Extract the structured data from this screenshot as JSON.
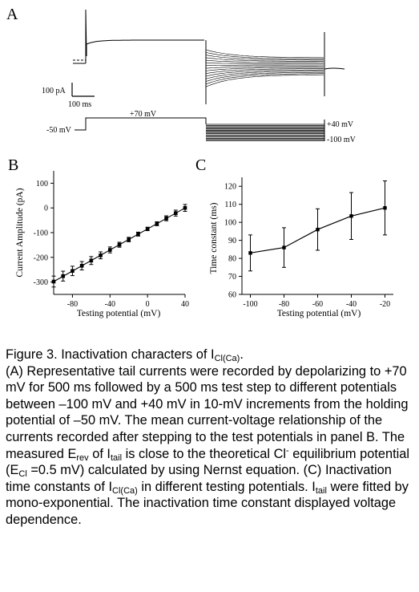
{
  "panel_a": {
    "label": "A",
    "scale_current": "100 pA",
    "scale_time": "100 ms",
    "protocol_step": "+70 mV",
    "protocol_hold": "-50 mV",
    "protocol_top": "+40 mV",
    "protocol_bottom": "-100 mV"
  },
  "chart_data": [
    {
      "panel": "B",
      "type": "scatter",
      "xlabel": "Testing potential (mV)",
      "ylabel": "Current Amplitude (pA)",
      "xlim": [
        -100,
        40
      ],
      "ylim": [
        -350,
        150
      ],
      "xticks": [
        -80,
        -40,
        0,
        40
      ],
      "yticks": [
        100,
        0,
        -100,
        -200,
        -300
      ],
      "series": [
        {
          "x": [
            -100,
            -90,
            -80,
            -70,
            -60,
            -50,
            -40,
            -30,
            -20,
            -10,
            0,
            10,
            20,
            30,
            40
          ],
          "y": [
            -298,
            -276,
            -255,
            -234,
            -213,
            -192,
            -170,
            -149,
            -128,
            -106,
            -85,
            -64,
            -42,
            -21,
            0
          ],
          "err": [
            22,
            20,
            19,
            17,
            16,
            14,
            12,
            10,
            9,
            8,
            7,
            8,
            10,
            12,
            14
          ]
        }
      ]
    },
    {
      "panel": "C",
      "type": "line",
      "xlabel": "Testing potential (mV)",
      "ylabel": "Time constant (ms)",
      "xlim": [
        -105,
        -15
      ],
      "ylim": [
        60,
        125
      ],
      "xticks": [
        -100,
        -80,
        -60,
        -40,
        -20
      ],
      "yticks": [
        60,
        70,
        80,
        90,
        100,
        110,
        120
      ],
      "series": [
        {
          "x": [
            -100,
            -80,
            -60,
            -40,
            -20
          ],
          "y": [
            83,
            86,
            96,
            103.5,
            108
          ],
          "err": [
            10,
            11,
            11.5,
            13,
            15
          ]
        }
      ]
    }
  ],
  "caption": {
    "title_pre": "Figure 3. Inactivation characters of I",
    "title_sub": "Cl(Ca)",
    "title_post": ".",
    "p1": "(A) Representative tail currents were recorded by depolarizing to +70 mV for 500 ms followed by a 500 ms test step to different potentials between –100 mV and +40 mV in 10-mV increments from the holding potential of –50 mV. The mean current-voltage relationship of the currents recorded after stepping to the test potentials in panel B. The measured E",
    "rev_sub": "rev",
    "of_text": " of I",
    "tail_sub": "tail",
    "p2": " is close to the theoretical Cl",
    "cl_sup": "-",
    "p3": " equilibrium potential (E",
    "cl_sub": "Cl",
    "p4": " =0.5 mV) calculated by using Nernst equation. (C) Inactivation time constants of I",
    "clca_sub": "Cl(Ca)",
    "p5": " in different testing potentials. I",
    "tail_sub2": "tail",
    "p6": " were fitted by mono-exponential. The inactivation time constant displayed voltage dependence."
  }
}
